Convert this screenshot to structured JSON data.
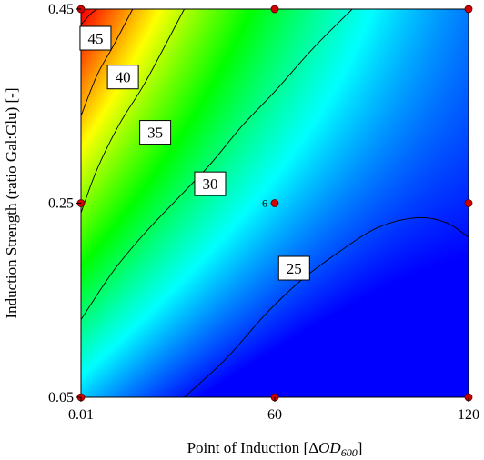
{
  "chart_data": {
    "type": "contour",
    "xlabel": "Point of Induction [ΔOD600]",
    "xlabel_parts": {
      "prefix": "Point of Induction [Δ",
      "italic": "OD",
      "sub": "600",
      "suffix": "]"
    },
    "ylabel": "Induction Strength (ratio Gal:Glu) [-]",
    "x_ticks": [
      {
        "value": 0.01,
        "label": "0.01"
      },
      {
        "value": 60,
        "label": "60"
      },
      {
        "value": 120,
        "label": "120"
      }
    ],
    "y_ticks": [
      {
        "value": 0.05,
        "label": "0.05"
      },
      {
        "value": 0.25,
        "label": "0.25"
      },
      {
        "value": 0.45,
        "label": "0.45"
      }
    ],
    "xlim": [
      0.01,
      120
    ],
    "ylim": [
      0.05,
      0.45
    ],
    "contour_levels": [
      25,
      30,
      35,
      40,
      45
    ],
    "contour_labels": [
      {
        "label": "45",
        "x": 4.5,
        "y": 0.42
      },
      {
        "label": "40",
        "x": 13,
        "y": 0.38
      },
      {
        "label": "35",
        "x": 23,
        "y": 0.323
      },
      {
        "label": "30",
        "x": 40,
        "y": 0.27
      },
      {
        "label": "25",
        "x": 66,
        "y": 0.183
      }
    ],
    "contour_lines": [
      {
        "level": 45,
        "points": [
          [
            0.01,
            0.434
          ],
          [
            3,
            0.445
          ],
          [
            5,
            0.45
          ]
        ]
      },
      {
        "level": 40,
        "points": [
          [
            0.01,
            0.34
          ],
          [
            5,
            0.382
          ],
          [
            10,
            0.412
          ],
          [
            16,
            0.45
          ]
        ]
      },
      {
        "level": 35,
        "points": [
          [
            0.01,
            0.24
          ],
          [
            5,
            0.285
          ],
          [
            12,
            0.332
          ],
          [
            20,
            0.375
          ],
          [
            32,
            0.45
          ]
        ]
      },
      {
        "level": 30,
        "points": [
          [
            0.01,
            0.13
          ],
          [
            10,
            0.18
          ],
          [
            20,
            0.22
          ],
          [
            30,
            0.255
          ],
          [
            40,
            0.29
          ],
          [
            50,
            0.33
          ],
          [
            60,
            0.365
          ],
          [
            72,
            0.41
          ],
          [
            84,
            0.45
          ]
        ]
      },
      {
        "level": 25,
        "points": [
          [
            32,
            0.05
          ],
          [
            45,
            0.09
          ],
          [
            57,
            0.135
          ],
          [
            68,
            0.17
          ],
          [
            80,
            0.2
          ],
          [
            92,
            0.225
          ],
          [
            104,
            0.235
          ],
          [
            113,
            0.23
          ],
          [
            120,
            0.215
          ]
        ]
      }
    ],
    "design_points": [
      {
        "x": 0.01,
        "y": 0.45
      },
      {
        "x": 60,
        "y": 0.45
      },
      {
        "x": 120,
        "y": 0.45
      },
      {
        "x": 0.01,
        "y": 0.25
      },
      {
        "x": 60,
        "y": 0.25,
        "label": "6"
      },
      {
        "x": 120,
        "y": 0.25
      },
      {
        "x": 0.01,
        "y": 0.05
      },
      {
        "x": 60,
        "y": 0.05
      },
      {
        "x": 120,
        "y": 0.05
      }
    ],
    "colorscale": [
      "#0000ff",
      "#00ffff",
      "#00ff00",
      "#ffff00",
      "#ff0000"
    ],
    "value_range": [
      22,
      47
    ],
    "grid": false,
    "colors": {
      "point": "#d10000",
      "contour": "#000000",
      "label_box": "#ffffff"
    }
  }
}
